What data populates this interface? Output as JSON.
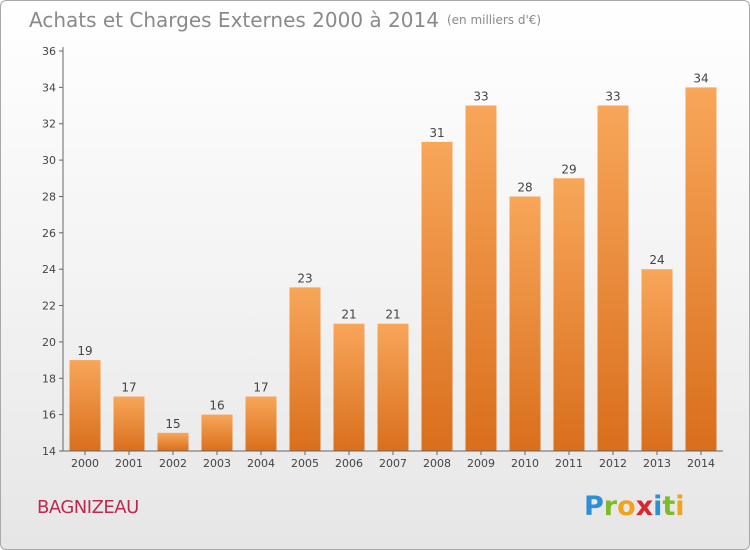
{
  "header": {
    "title": "Achats et Charges Externes 2000 à 2014",
    "unit": "(en milliers d'€)"
  },
  "footer": {
    "commune": "BAGNIZEAU",
    "brand": [
      "P",
      "r",
      "o",
      "x",
      "i",
      "t",
      "i"
    ],
    "brand_colors": [
      "#2e8fd6",
      "#7fba2a",
      "#f2a21b",
      "#d9262f",
      "#2e8fd6",
      "#7fba2a",
      "#f2a21b"
    ]
  },
  "colors": {
    "bar_light": "#f8a65a",
    "bar_dark": "#d96f1c",
    "axis": "#666666",
    "grid": "#dddddd"
  },
  "chart_data": {
    "type": "bar",
    "title": "Achats et Charges Externes 2000 à 2014",
    "subtitle": "(en milliers d'€)",
    "categories": [
      "2000",
      "2001",
      "2002",
      "2003",
      "2004",
      "2005",
      "2006",
      "2007",
      "2008",
      "2009",
      "2010",
      "2011",
      "2012",
      "2013",
      "2014"
    ],
    "values": [
      19,
      17,
      15,
      16,
      17,
      23,
      21,
      21,
      31,
      33,
      28,
      29,
      33,
      24,
      34
    ],
    "ylim": [
      14,
      36
    ],
    "yticks": [
      14,
      16,
      18,
      20,
      22,
      24,
      26,
      28,
      30,
      32,
      34,
      36
    ],
    "grid": false,
    "xlabel": "",
    "ylabel": ""
  }
}
